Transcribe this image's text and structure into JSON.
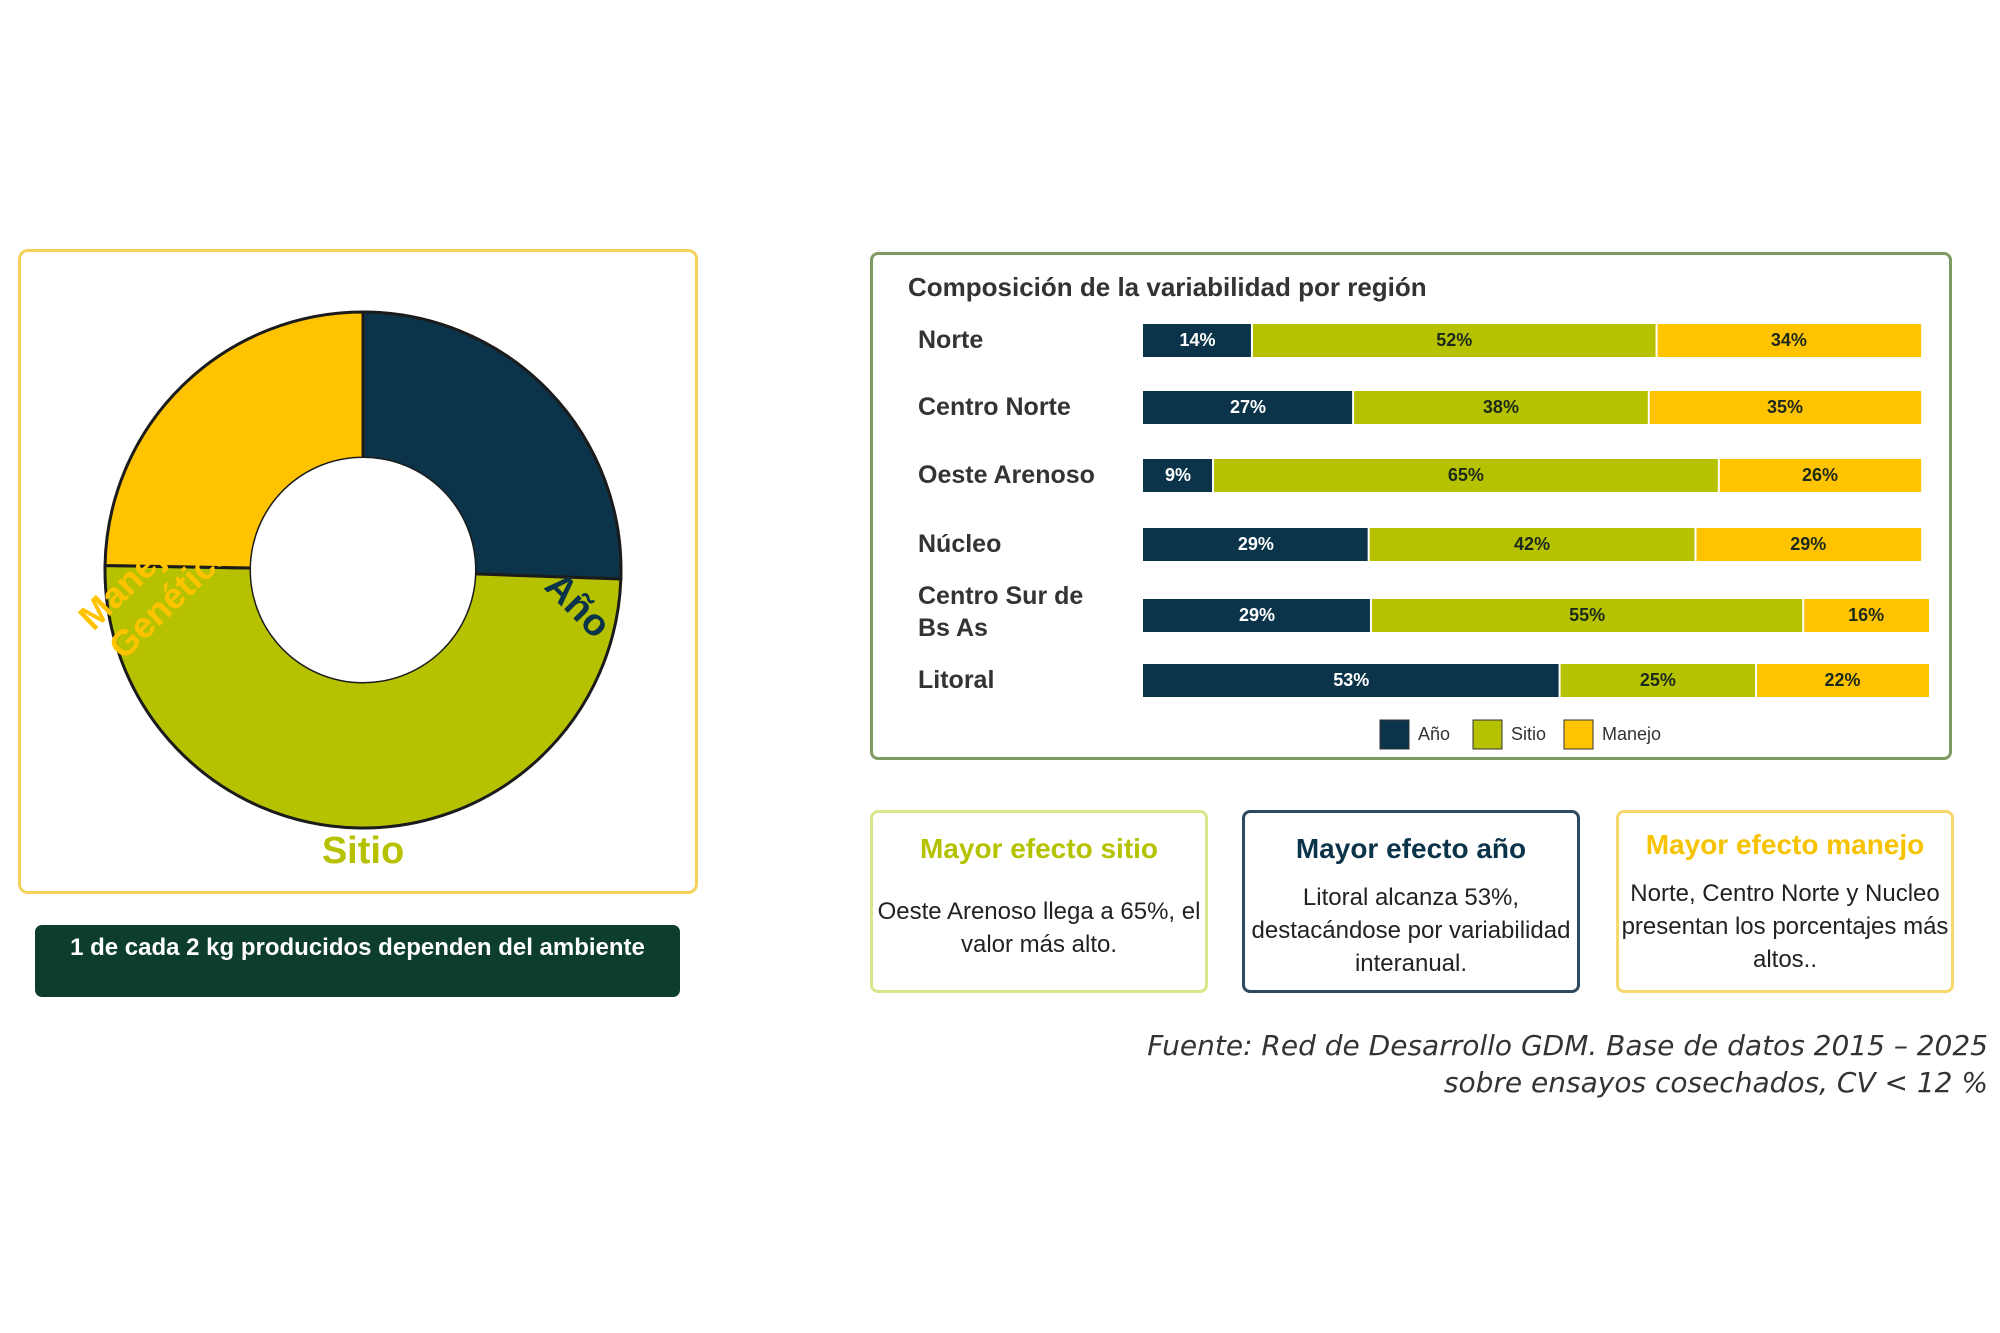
{
  "donut": {
    "caption": "1 de cada 2 kg producidos dependen del ambiente",
    "label_ano": "Año",
    "label_sitio": "Sitio",
    "label_manejo_line1": "Manejo +",
    "label_manejo_line2": "Genética"
  },
  "colors": {
    "ano": "#0b344a",
    "sitio": "#b6c200",
    "manejo": "#ffc300"
  },
  "chart_data": [
    {
      "type": "pie",
      "categories": [
        "Año",
        "Sitio",
        "Manejo + Genética"
      ],
      "values": [
        25,
        50,
        25
      ],
      "colors": [
        "#0b344a",
        "#b6c200",
        "#ffc300"
      ]
    },
    {
      "type": "bar",
      "orientation": "horizontal",
      "stacked": true,
      "title": "Composición de la variabilidad por región",
      "categories": [
        "Norte",
        "Centro Norte",
        "Oeste Arenoso",
        "Núcleo",
        "Centro Sur de Bs As",
        "Litoral"
      ],
      "series": [
        {
          "name": "Año",
          "color": "#0b344a",
          "values": [
            14,
            27,
            9,
            29,
            29,
            53
          ]
        },
        {
          "name": "Sitio",
          "color": "#b6c200",
          "values": [
            52,
            38,
            65,
            42,
            55,
            25
          ]
        },
        {
          "name": "Manejo",
          "color": "#ffc300",
          "values": [
            34,
            35,
            26,
            29,
            16,
            22
          ]
        }
      ],
      "data_labels": [
        [
          "14%",
          "52%",
          "34%"
        ],
        [
          "27%",
          "38%",
          "35%"
        ],
        [
          "9%",
          "65%",
          "26%"
        ],
        [
          "29%",
          "42%",
          "29%"
        ],
        [
          "29%",
          "55%",
          "16%"
        ],
        [
          "53%",
          "25%",
          "22%"
        ]
      ],
      "legend": "bottom"
    }
  ],
  "insights": [
    {
      "title": "Mayor efecto sitio",
      "text": "Oeste Arenoso llega a 65%, el valor más alto."
    },
    {
      "title": "Mayor efecto año",
      "text": "Litoral alcanza 53%, destacándose por variabilidad interanual."
    },
    {
      "title": "Mayor efecto manejo",
      "text": "Norte, Centro Norte y Nucleo presentan los porcentajes más altos.."
    }
  ],
  "source": {
    "line1": "Fuente: Red de Desarrollo GDM. Base de datos 2015 – 2025",
    "line2": "sobre ensayos cosechados, CV < 12 %"
  }
}
